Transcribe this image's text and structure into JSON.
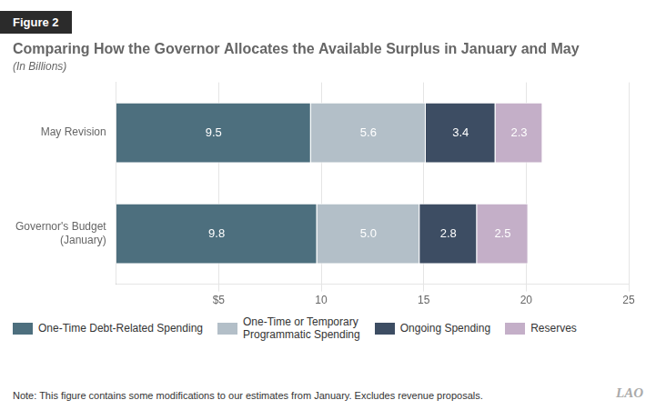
{
  "chart_data": {
    "type": "bar",
    "orientation": "horizontal",
    "stacked": true,
    "data_labels": true,
    "grid": true,
    "legend": "bottom",
    "title": "Comparing How the Governor Allocates the Available Surplus in January and May",
    "subtitle": "(In Billions)",
    "annotations": [
      "Figure 2",
      "Note: This figure contains some modifications to our estimates from January. Excludes revenue proposals.",
      "LAO"
    ],
    "categories": [
      "Governor's Budget\n(January)",
      "May Revision"
    ],
    "series": [
      {
        "name": "One-Time Debt-Related Spending",
        "values": [
          9.8,
          9.5
        ],
        "color": "#4d6f7e"
      },
      {
        "name": "One-Time or Temporary\nProgrammatic Spending",
        "values": [
          5.0,
          5.6
        ],
        "value_labels": [
          "5.0",
          "5.6"
        ],
        "color": "#b3bfc8"
      },
      {
        "name": "Ongoing Spending",
        "values": [
          2.8,
          3.4
        ],
        "color": "#3d4d63"
      },
      {
        "name": "Reserves",
        "values": [
          2.5,
          2.3
        ],
        "color": "#c4afc8"
      }
    ],
    "xlim": [
      0,
      25
    ],
    "xticks": [
      {
        "value": 5,
        "label": "$5"
      },
      10,
      15,
      20,
      25
    ]
  }
}
